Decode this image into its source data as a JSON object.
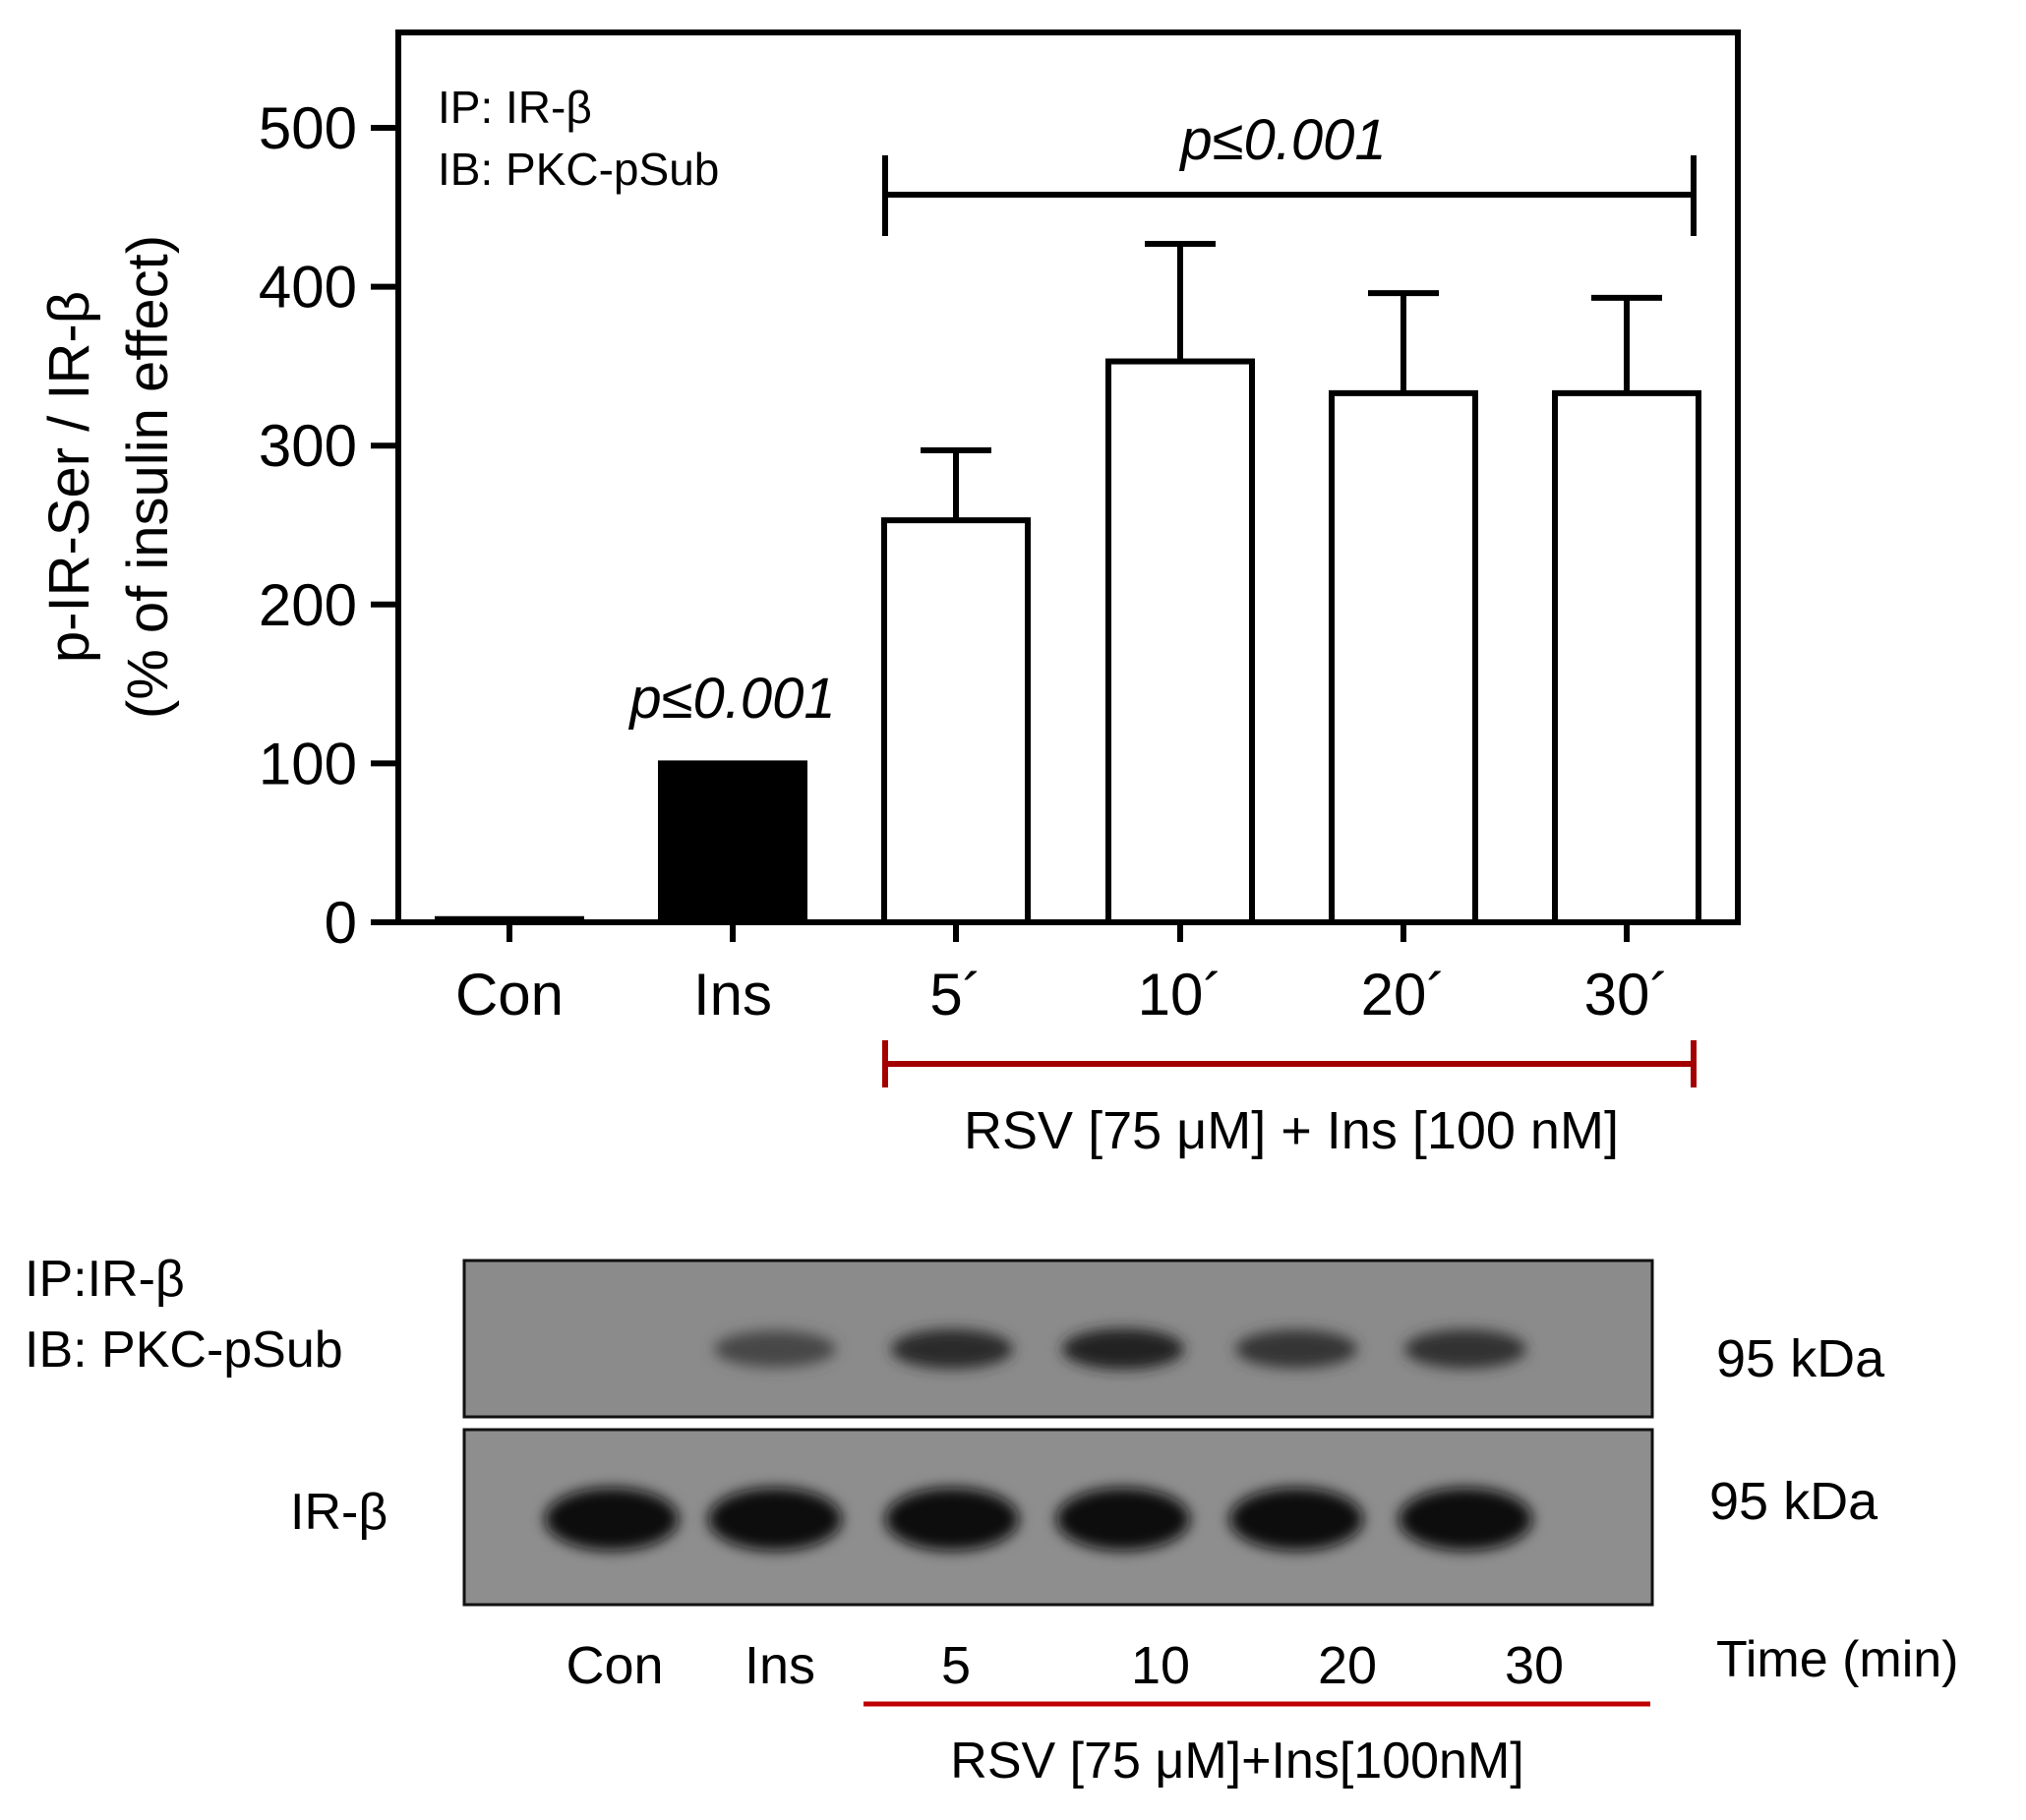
{
  "chart_data": {
    "type": "bar",
    "categories": [
      "Con",
      "Ins",
      "5´",
      "10´",
      "20´",
      "30´"
    ],
    "series": [
      {
        "values": [
          2,
          100,
          253,
          353,
          333,
          333
        ],
        "errors": [
          0,
          0,
          44,
          74,
          63,
          60
        ],
        "fills": [
          "#ffffff",
          "#000000",
          "#ffffff",
          "#ffffff",
          "#ffffff",
          "#ffffff"
        ]
      }
    ],
    "ylim": [
      0,
      550
    ],
    "yticks": [
      0,
      100,
      200,
      300,
      400,
      500
    ],
    "ylabel_line1": "p-IR-Ser / IR-β",
    "ylabel_line2": "(% of insulin effect)",
    "xlabel": "",
    "grid": false,
    "annotations": {
      "ip_text": "IP: IR-β",
      "ib_text": "IB: PKC-pSub",
      "p_bracket": "p≤0.001",
      "p_ins": "p≤0.001",
      "treatment_label": "RSV [75 μM] + Ins [100 nM]",
      "treatment_color": "#a30000"
    }
  },
  "blot": {
    "ip_label": "IP:IR-β",
    "ib_label": "IB: PKC-pSub",
    "lower_label": "IR-β",
    "upper_kda": "95 kDa",
    "lower_kda": "95 kDa",
    "lanes": [
      "Con",
      "Ins",
      "5",
      "10",
      "20",
      "30"
    ],
    "time_label": "Time (min)",
    "treatment_label": "RSV [75 μM]+Ins[100nM]",
    "treatment_color": "#c00000",
    "upper_band_intensity": [
      0,
      0.45,
      0.7,
      0.8,
      0.6,
      0.65
    ],
    "lower_band_intensity": [
      0.95,
      0.95,
      0.95,
      0.95,
      0.95,
      0.95
    ]
  }
}
